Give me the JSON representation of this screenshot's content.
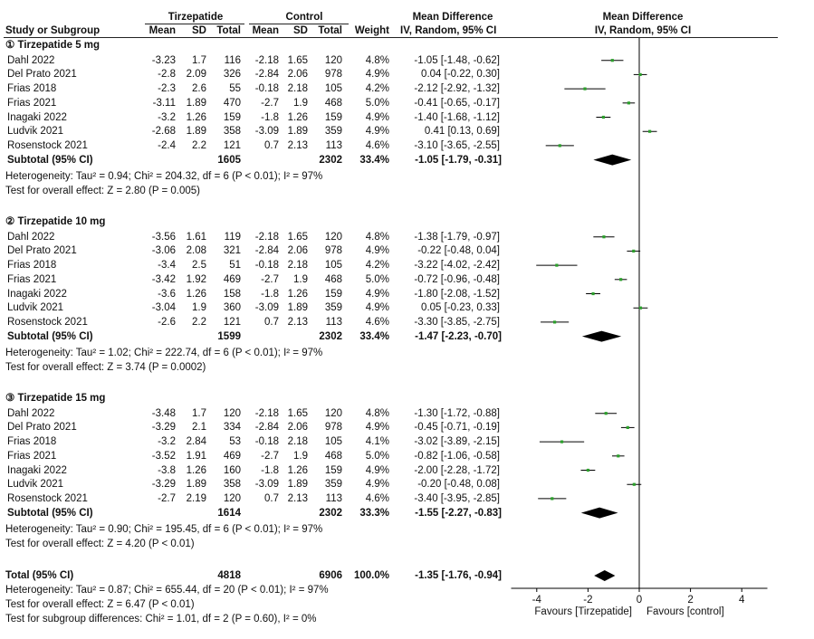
{
  "header": {
    "group1": "Tirzepatide",
    "group2": "Control",
    "md_title": "Mean Difference",
    "plot_title": "Mean Difference",
    "col_study": "Study or Subgroup",
    "col_mean1": "Mean",
    "col_sd1": "SD",
    "col_total1": "Total",
    "col_mean2": "Mean",
    "col_sd2": "SD",
    "col_total2": "Total",
    "col_weight": "Weight",
    "col_ci": "IV, Random, 95% CI",
    "plot_method": "IV, Random, 95% CI"
  },
  "subgroups": [
    {
      "title": "① Tirzepatide 5 mg",
      "studies": [
        {
          "name": "Dahl 2022",
          "m1": "-3.23",
          "sd1": "1.7",
          "n1": "116",
          "m2": "-2.18",
          "sd2": "1.65",
          "n2": "120",
          "w": "4.8%",
          "ci": "-1.05 [-1.48, -0.62]"
        },
        {
          "name": "Del Prato 2021",
          "m1": "-2.8",
          "sd1": "2.09",
          "n1": "326",
          "m2": "-2.84",
          "sd2": "2.06",
          "n2": "978",
          "w": "4.9%",
          "ci": "0.04 [-0.22, 0.30]"
        },
        {
          "name": "Frias 2018",
          "m1": "-2.3",
          "sd1": "2.6",
          "n1": "55",
          "m2": "-0.18",
          "sd2": "2.18",
          "n2": "105",
          "w": "4.2%",
          "ci": "-2.12 [-2.92, -1.32]"
        },
        {
          "name": "Frias 2021",
          "m1": "-3.11",
          "sd1": "1.89",
          "n1": "470",
          "m2": "-2.7",
          "sd2": "1.9",
          "n2": "468",
          "w": "5.0%",
          "ci": "-0.41 [-0.65, -0.17]"
        },
        {
          "name": "Inagaki 2022",
          "m1": "-3.2",
          "sd1": "1.26",
          "n1": "159",
          "m2": "-1.8",
          "sd2": "1.26",
          "n2": "159",
          "w": "4.9%",
          "ci": "-1.40 [-1.68, -1.12]"
        },
        {
          "name": "Ludvik 2021",
          "m1": "-2.68",
          "sd1": "1.89",
          "n1": "358",
          "m2": "-3.09",
          "sd2": "1.89",
          "n2": "359",
          "w": "4.9%",
          "ci": "0.41 [0.13, 0.69]"
        },
        {
          "name": "Rosenstock 2021",
          "m1": "-2.4",
          "sd1": "2.2",
          "n1": "121",
          "m2": "0.7",
          "sd2": "2.13",
          "n2": "113",
          "w": "4.6%",
          "ci": "-3.10 [-3.65, -2.55]"
        }
      ],
      "subtotal": {
        "label": "Subtotal (95% CI)",
        "n1": "1605",
        "n2": "2302",
        "w": "33.4%",
        "ci": "-1.05 [-1.79, -0.31]"
      },
      "heterogeneity": "Heterogeneity: Tau² = 0.94; Chi² = 204.32, df = 6 (P < 0.01); I² = 97%",
      "overall": "Test for overall effect: Z = 2.80 (P = 0.005)"
    },
    {
      "title": "② Tirzepatide 10 mg",
      "studies": [
        {
          "name": "Dahl 2022",
          "m1": "-3.56",
          "sd1": "1.61",
          "n1": "119",
          "m2": "-2.18",
          "sd2": "1.65",
          "n2": "120",
          "w": "4.8%",
          "ci": "-1.38 [-1.79, -0.97]"
        },
        {
          "name": "Del Prato 2021",
          "m1": "-3.06",
          "sd1": "2.08",
          "n1": "321",
          "m2": "-2.84",
          "sd2": "2.06",
          "n2": "978",
          "w": "4.9%",
          "ci": "-0.22 [-0.48, 0.04]"
        },
        {
          "name": "Frias 2018",
          "m1": "-3.4",
          "sd1": "2.5",
          "n1": "51",
          "m2": "-0.18",
          "sd2": "2.18",
          "n2": "105",
          "w": "4.2%",
          "ci": "-3.22 [-4.02, -2.42]"
        },
        {
          "name": "Frias 2021",
          "m1": "-3.42",
          "sd1": "1.92",
          "n1": "469",
          "m2": "-2.7",
          "sd2": "1.9",
          "n2": "468",
          "w": "5.0%",
          "ci": "-0.72 [-0.96, -0.48]"
        },
        {
          "name": "Inagaki 2022",
          "m1": "-3.6",
          "sd1": "1.26",
          "n1": "158",
          "m2": "-1.8",
          "sd2": "1.26",
          "n2": "159",
          "w": "4.9%",
          "ci": "-1.80 [-2.08, -1.52]"
        },
        {
          "name": "Ludvik 2021",
          "m1": "-3.04",
          "sd1": "1.9",
          "n1": "360",
          "m2": "-3.09",
          "sd2": "1.89",
          "n2": "359",
          "w": "4.9%",
          "ci": "0.05 [-0.23, 0.33]"
        },
        {
          "name": "Rosenstock 2021",
          "m1": "-2.6",
          "sd1": "2.2",
          "n1": "121",
          "m2": "0.7",
          "sd2": "2.13",
          "n2": "113",
          "w": "4.6%",
          "ci": "-3.30 [-3.85, -2.75]"
        }
      ],
      "subtotal": {
        "label": "Subtotal (95% CI)",
        "n1": "1599",
        "n2": "2302",
        "w": "33.4%",
        "ci": "-1.47 [-2.23, -0.70]"
      },
      "heterogeneity": "Heterogeneity: Tau² = 1.02; Chi² = 222.74, df = 6 (P < 0.01); I² = 97%",
      "overall": "Test for overall effect: Z = 3.74 (P = 0.0002)"
    },
    {
      "title": "③ Tirzepatide 15 mg",
      "studies": [
        {
          "name": "Dahl 2022",
          "m1": "-3.48",
          "sd1": "1.7",
          "n1": "120",
          "m2": "-2.18",
          "sd2": "1.65",
          "n2": "120",
          "w": "4.8%",
          "ci": "-1.30 [-1.72, -0.88]"
        },
        {
          "name": "Del Prato 2021",
          "m1": "-3.29",
          "sd1": "2.1",
          "n1": "334",
          "m2": "-2.84",
          "sd2": "2.06",
          "n2": "978",
          "w": "4.9%",
          "ci": "-0.45 [-0.71, -0.19]"
        },
        {
          "name": "Frias 2018",
          "m1": "-3.2",
          "sd1": "2.84",
          "n1": "53",
          "m2": "-0.18",
          "sd2": "2.18",
          "n2": "105",
          "w": "4.1%",
          "ci": "-3.02 [-3.89, -2.15]"
        },
        {
          "name": "Frias 2021",
          "m1": "-3.52",
          "sd1": "1.91",
          "n1": "469",
          "m2": "-2.7",
          "sd2": "1.9",
          "n2": "468",
          "w": "5.0%",
          "ci": "-0.82 [-1.06, -0.58]"
        },
        {
          "name": "Inagaki 2022",
          "m1": "-3.8",
          "sd1": "1.26",
          "n1": "160",
          "m2": "-1.8",
          "sd2": "1.26",
          "n2": "159",
          "w": "4.9%",
          "ci": "-2.00 [-2.28, -1.72]"
        },
        {
          "name": "Ludvik 2021",
          "m1": "-3.29",
          "sd1": "1.89",
          "n1": "358",
          "m2": "-3.09",
          "sd2": "1.89",
          "n2": "359",
          "w": "4.9%",
          "ci": "-0.20 [-0.48, 0.08]"
        },
        {
          "name": "Rosenstock 2021",
          "m1": "-2.7",
          "sd1": "2.19",
          "n1": "120",
          "m2": "0.7",
          "sd2": "2.13",
          "n2": "113",
          "w": "4.6%",
          "ci": "-3.40 [-3.95, -2.85]"
        }
      ],
      "subtotal": {
        "label": "Subtotal (95% CI)",
        "n1": "1614",
        "n2": "2302",
        "w": "33.3%",
        "ci": "-1.55 [-2.27, -0.83]"
      },
      "heterogeneity": "Heterogeneity: Tau² = 0.90; Chi² = 195.45, df = 6 (P < 0.01); I² = 97%",
      "overall": "Test for overall effect: Z = 4.20 (P < 0.01)"
    }
  ],
  "total": {
    "label": "Total (95% CI)",
    "n1": "4818",
    "n2": "6906",
    "w": "100.0%",
    "ci": "-1.35 [-1.76, -0.94]",
    "heterogeneity": "Heterogeneity: Tau² = 0.87; Chi² = 655.44, df = 20 (P < 0.01); I² = 97%",
    "overall": "Test for overall effect: Z = 6.47 (P < 0.01)",
    "subgroup_diff": "Test for subgroup differences: Chi² = 1.01, df = 2 (P = 0.60), I² = 0%"
  },
  "axis": {
    "ticks": [
      "-4",
      "-2",
      "0",
      "2",
      "4"
    ],
    "favours_left": "Favours [Tirzepatide]",
    "favours_right": "Favours [control]"
  },
  "colors": {
    "point": "#2ca02c",
    "line": "#000000",
    "diamond": "#000000"
  },
  "chart_data": {
    "type": "scatter",
    "title": "Mean Difference",
    "xlabel": "",
    "xlim": [
      -5,
      5
    ],
    "xticks": [
      -4,
      -2,
      0,
      2,
      4
    ],
    "reference_line": 0,
    "studies": [
      {
        "subgroup": 0,
        "md": -1.05,
        "lo": -1.48,
        "hi": -0.62
      },
      {
        "subgroup": 0,
        "md": 0.04,
        "lo": -0.22,
        "hi": 0.3
      },
      {
        "subgroup": 0,
        "md": -2.12,
        "lo": -2.92,
        "hi": -1.32
      },
      {
        "subgroup": 0,
        "md": -0.41,
        "lo": -0.65,
        "hi": -0.17
      },
      {
        "subgroup": 0,
        "md": -1.4,
        "lo": -1.68,
        "hi": -1.12
      },
      {
        "subgroup": 0,
        "md": 0.41,
        "lo": 0.13,
        "hi": 0.69
      },
      {
        "subgroup": 0,
        "md": -3.1,
        "lo": -3.65,
        "hi": -2.55
      },
      {
        "subgroup": 1,
        "md": -1.38,
        "lo": -1.79,
        "hi": -0.97
      },
      {
        "subgroup": 1,
        "md": -0.22,
        "lo": -0.48,
        "hi": 0.04
      },
      {
        "subgroup": 1,
        "md": -3.22,
        "lo": -4.02,
        "hi": -2.42
      },
      {
        "subgroup": 1,
        "md": -0.72,
        "lo": -0.96,
        "hi": -0.48
      },
      {
        "subgroup": 1,
        "md": -1.8,
        "lo": -2.08,
        "hi": -1.52
      },
      {
        "subgroup": 1,
        "md": 0.05,
        "lo": -0.23,
        "hi": 0.33
      },
      {
        "subgroup": 1,
        "md": -3.3,
        "lo": -3.85,
        "hi": -2.75
      },
      {
        "subgroup": 2,
        "md": -1.3,
        "lo": -1.72,
        "hi": -0.88
      },
      {
        "subgroup": 2,
        "md": -0.45,
        "lo": -0.71,
        "hi": -0.19
      },
      {
        "subgroup": 2,
        "md": -3.02,
        "lo": -3.89,
        "hi": -2.15
      },
      {
        "subgroup": 2,
        "md": -0.82,
        "lo": -1.06,
        "hi": -0.58
      },
      {
        "subgroup": 2,
        "md": -2.0,
        "lo": -2.28,
        "hi": -1.72
      },
      {
        "subgroup": 2,
        "md": -0.2,
        "lo": -0.48,
        "hi": 0.08
      },
      {
        "subgroup": 2,
        "md": -3.4,
        "lo": -3.95,
        "hi": -2.85
      }
    ],
    "subtotals": [
      {
        "md": -1.05,
        "lo": -1.79,
        "hi": -0.31
      },
      {
        "md": -1.47,
        "lo": -2.23,
        "hi": -0.7
      },
      {
        "md": -1.55,
        "lo": -2.27,
        "hi": -0.83
      }
    ],
    "total": {
      "md": -1.35,
      "lo": -1.76,
      "hi": -0.94
    }
  }
}
